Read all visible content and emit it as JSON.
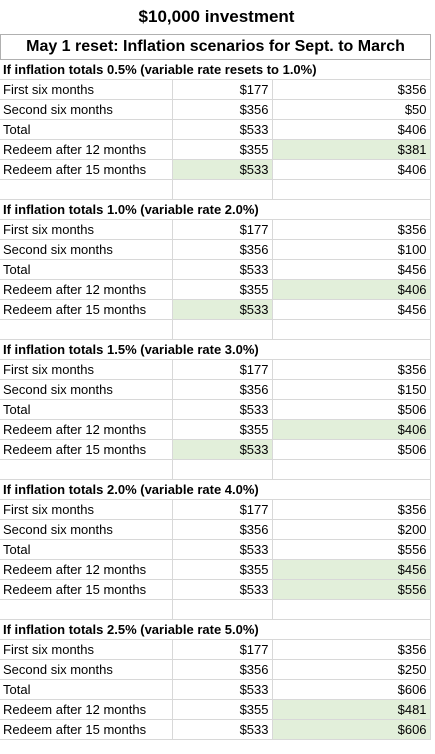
{
  "title": "$10,000 investment",
  "subtitle": "May 1 reset: Inflation scenarios for Sept. to March",
  "sections": [
    {
      "heading": "If inflation totals 0.5% (variable rate resets to 1.0%)",
      "rows": [
        {
          "label": "First six months",
          "a": "$177",
          "b": "$356",
          "a_hl": false,
          "b_hl": false
        },
        {
          "label": "Second six months",
          "a": "$356",
          "b": "$50",
          "a_hl": false,
          "b_hl": false
        },
        {
          "label": "Total",
          "a": "$533",
          "b": "$406",
          "a_hl": false,
          "b_hl": false
        },
        {
          "label": "Redeem after 12 months",
          "a": "$355",
          "b": "$381",
          "a_hl": false,
          "b_hl": true
        },
        {
          "label": "Redeem after 15 months",
          "a": "$533",
          "b": "$406",
          "a_hl": true,
          "b_hl": false
        }
      ]
    },
    {
      "heading": "If inflation totals 1.0% (variable rate 2.0%)",
      "rows": [
        {
          "label": "First six months",
          "a": "$177",
          "b": "$356",
          "a_hl": false,
          "b_hl": false
        },
        {
          "label": "Second six months",
          "a": "$356",
          "b": "$100",
          "a_hl": false,
          "b_hl": false
        },
        {
          "label": "Total",
          "a": "$533",
          "b": "$456",
          "a_hl": false,
          "b_hl": false
        },
        {
          "label": "Redeem after 12 months",
          "a": "$355",
          "b": "$406",
          "a_hl": false,
          "b_hl": true
        },
        {
          "label": "Redeem after 15 months",
          "a": "$533",
          "b": "$456",
          "a_hl": true,
          "b_hl": false
        }
      ]
    },
    {
      "heading": "If inflation totals 1.5% (variable rate 3.0%)",
      "rows": [
        {
          "label": "First six months",
          "a": "$177",
          "b": "$356",
          "a_hl": false,
          "b_hl": false
        },
        {
          "label": "Second six months",
          "a": "$356",
          "b": "$150",
          "a_hl": false,
          "b_hl": false
        },
        {
          "label": "Total",
          "a": "$533",
          "b": "$506",
          "a_hl": false,
          "b_hl": false
        },
        {
          "label": "Redeem after 12 months",
          "a": "$355",
          "b": "$406",
          "a_hl": false,
          "b_hl": true
        },
        {
          "label": "Redeem after 15 months",
          "a": "$533",
          "b": "$506",
          "a_hl": true,
          "b_hl": false
        }
      ]
    },
    {
      "heading": "If inflation totals 2.0% (variable rate 4.0%)",
      "rows": [
        {
          "label": "First six months",
          "a": "$177",
          "b": "$356",
          "a_hl": false,
          "b_hl": false
        },
        {
          "label": "Second six months",
          "a": "$356",
          "b": "$200",
          "a_hl": false,
          "b_hl": false
        },
        {
          "label": "Total",
          "a": "$533",
          "b": "$556",
          "a_hl": false,
          "b_hl": false
        },
        {
          "label": "Redeem after 12 months",
          "a": "$355",
          "b": "$456",
          "a_hl": false,
          "b_hl": true
        },
        {
          "label": "Redeem after 15 months",
          "a": "$533",
          "b": "$556",
          "a_hl": false,
          "b_hl": true
        }
      ]
    },
    {
      "heading": "If inflation totals 2.5% (variable rate 5.0%)",
      "rows": [
        {
          "label": "First six months",
          "a": "$177",
          "b": "$356",
          "a_hl": false,
          "b_hl": false
        },
        {
          "label": "Second six months",
          "a": "$356",
          "b": "$250",
          "a_hl": false,
          "b_hl": false
        },
        {
          "label": "Total",
          "a": "$533",
          "b": "$606",
          "a_hl": false,
          "b_hl": false
        },
        {
          "label": "Redeem after 12 months",
          "a": "$355",
          "b": "$481",
          "a_hl": false,
          "b_hl": true
        },
        {
          "label": "Redeem after 15 months",
          "a": "$533",
          "b": "$606",
          "a_hl": false,
          "b_hl": true
        }
      ]
    }
  ],
  "colors": {
    "highlight": "#e2efda",
    "gridline": "#d8d8d8"
  }
}
